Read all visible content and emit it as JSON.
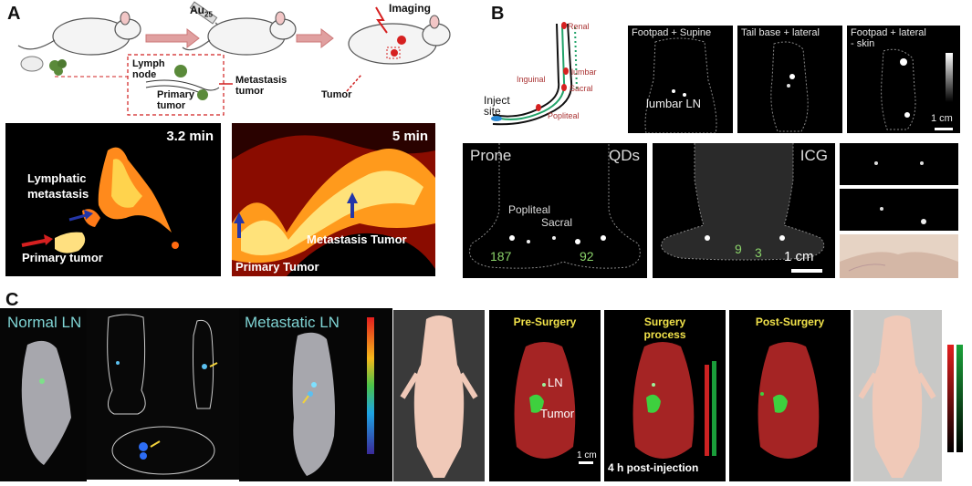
{
  "panels": {
    "a": "A",
    "b": "B",
    "c": "C"
  },
  "panel_a": {
    "schematic": {
      "au_label": "Au",
      "au_sub": "25",
      "imaging_label": "Imaging",
      "lymph_node_label": "Lymph\nnode",
      "primary_tumor_label": "Primary\ntumor",
      "metastasis_label": "Metastasis\ntumor",
      "tumor_label": "Tumor"
    },
    "img1": {
      "time": "3.2 min",
      "lymphatic": "Lymphatic\nmetastasis",
      "primary": "Primary tumor"
    },
    "img2": {
      "time": "5 min",
      "metastasis": "Metastasis Tumor",
      "primary": "Primary Tumor"
    }
  },
  "panel_b": {
    "diagram": {
      "renal": "Renal",
      "lumbar": "lumbar",
      "sacral": "Sacral",
      "popliteal": "Popliteal",
      "inguinal": "Inguinal",
      "inject": "Inject\nsite"
    },
    "top_images": [
      {
        "title": "Footpad + Supine",
        "sub": "lumbar LN"
      },
      {
        "title": "Tail base + lateral",
        "sub": ""
      },
      {
        "title": "Footpad + lateral\n- skin",
        "sub": "1 cm"
      }
    ],
    "bottom": {
      "prone": "Prone",
      "qds": "QDs",
      "popliteal": "Popliteal",
      "sacral": "Sacral",
      "n187": "187",
      "n92": "92",
      "icg": "ICG",
      "n9": "9",
      "n3": "3",
      "scale": "1 cm"
    }
  },
  "panel_c": {
    "normal_ln": "Normal LN",
    "metastatic_ln": "Metastatic LN",
    "pre_surgery": "Pre-Surgery",
    "surgery_process": "Surgery\nprocess",
    "post_surgery": "Post-Surgery",
    "ln": "LN",
    "tumor": "Tumor",
    "scale": "1 cm",
    "post_injection": "4 h post-injection"
  }
}
